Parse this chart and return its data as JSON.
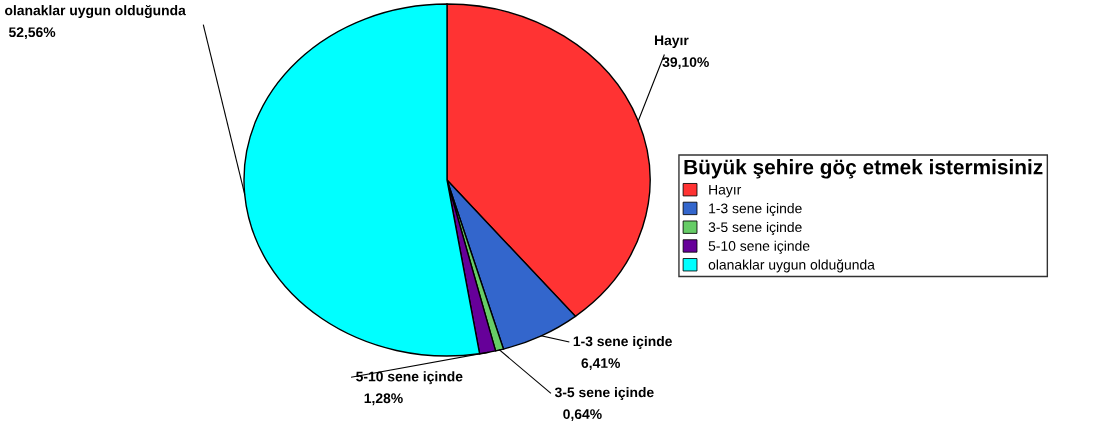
{
  "chart_data": {
    "type": "pie",
    "legend_title": "Büyük şehire göç etmek istermisiniz",
    "categories": [
      "Hayır",
      "1-3 sene içinde",
      "3-5 sene içinde",
      "5-10 sene içinde",
      "olanaklar uygun olduğunda"
    ],
    "values": [
      39.1,
      6.41,
      0.64,
      1.28,
      52.56
    ],
    "value_labels": [
      "39,10%",
      "6,41%",
      "0,64%",
      "1,28%",
      "52,56%"
    ],
    "colors": [
      "#ff3333",
      "#3366cc",
      "#66cc66",
      "#660099",
      "#00ffff"
    ],
    "legend": "right"
  }
}
